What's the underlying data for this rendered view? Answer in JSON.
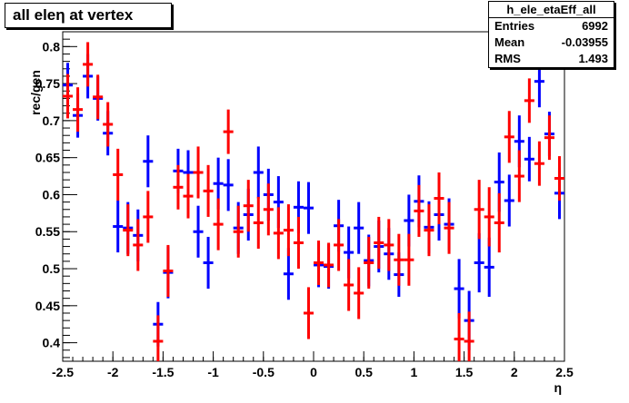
{
  "chart_data": {
    "type": "scatter",
    "title": "all eleη at vertex",
    "xlabel": "η",
    "ylabel": "rec/gen",
    "xlim": [
      -2.5,
      2.5
    ],
    "ylim": [
      0.375,
      0.82
    ],
    "xticks": [
      "-2.5",
      "-2",
      "-1.5",
      "-1",
      "-0.5",
      "0",
      "0.5",
      "1",
      "1.5",
      "2",
      "2.5"
    ],
    "xtick_values": [
      -2.5,
      -2,
      -1.5,
      -1,
      -0.5,
      0,
      0.5,
      1,
      1.5,
      2,
      2.5
    ],
    "yticks": [
      "0.4",
      "0.45",
      "0.5",
      "0.55",
      "0.6",
      "0.65",
      "0.7",
      "0.75",
      "0.8"
    ],
    "ytick_values": [
      0.4,
      0.45,
      0.5,
      0.55,
      0.6,
      0.65,
      0.7,
      0.75,
      0.8
    ],
    "bin_width": 0.1,
    "series": [
      {
        "color": "#0000ff",
        "x": [
          -2.45,
          -2.35,
          -2.25,
          -2.15,
          -2.05,
          -1.95,
          -1.85,
          -1.75,
          -1.65,
          -1.55,
          -1.45,
          -1.35,
          -1.25,
          -1.15,
          -1.05,
          -0.95,
          -0.85,
          -0.75,
          -0.65,
          -0.55,
          -0.45,
          -0.35,
          -0.25,
          -0.15,
          -0.05,
          0.05,
          0.15,
          0.25,
          0.35,
          0.45,
          0.55,
          0.65,
          0.75,
          0.85,
          0.95,
          1.05,
          1.15,
          1.25,
          1.35,
          1.45,
          1.55,
          1.65,
          1.75,
          1.85,
          1.95,
          2.05,
          2.15,
          2.25,
          2.35,
          2.45
        ],
        "y": [
          0.748,
          0.707,
          0.76,
          0.73,
          0.683,
          0.557,
          0.555,
          0.545,
          0.645,
          0.425,
          0.495,
          0.632,
          0.63,
          0.55,
          0.508,
          0.615,
          0.613,
          0.555,
          0.573,
          0.63,
          0.6,
          0.59,
          0.493,
          0.583,
          0.582,
          0.505,
          0.503,
          0.558,
          0.522,
          0.555,
          0.511,
          0.53,
          0.52,
          0.492,
          0.565,
          0.591,
          0.556,
          0.573,
          0.56,
          0.473,
          0.43,
          0.508,
          0.502,
          0.617,
          0.592,
          0.672,
          0.648,
          0.753,
          0.682,
          0.602
        ],
        "err": [
          0.03,
          0.03,
          0.03,
          0.03,
          0.03,
          0.035,
          0.035,
          0.035,
          0.035,
          0.03,
          0.035,
          0.03,
          0.03,
          0.035,
          0.035,
          0.035,
          0.035,
          0.035,
          0.035,
          0.035,
          0.035,
          0.035,
          0.035,
          0.035,
          0.035,
          0.03,
          0.03,
          0.035,
          0.035,
          0.035,
          0.035,
          0.035,
          0.035,
          0.03,
          0.035,
          0.035,
          0.035,
          0.035,
          0.035,
          0.04,
          0.04,
          0.04,
          0.04,
          0.04,
          0.035,
          0.035,
          0.03,
          0.035,
          0.03,
          0.035
        ]
      },
      {
        "color": "#ff0000",
        "x": [
          -2.45,
          -2.35,
          -2.25,
          -2.15,
          -2.05,
          -1.95,
          -1.85,
          -1.75,
          -1.65,
          -1.55,
          -1.45,
          -1.35,
          -1.25,
          -1.15,
          -1.05,
          -0.95,
          -0.85,
          -0.75,
          -0.65,
          -0.55,
          -0.45,
          -0.35,
          -0.25,
          -0.15,
          -0.05,
          0.05,
          0.15,
          0.25,
          0.35,
          0.45,
          0.55,
          0.65,
          0.75,
          0.85,
          0.95,
          1.05,
          1.15,
          1.25,
          1.35,
          1.45,
          1.55,
          1.65,
          1.75,
          1.85,
          1.95,
          2.05,
          2.15,
          2.25,
          2.35,
          2.45
        ],
        "y": [
          0.733,
          0.715,
          0.776,
          0.732,
          0.695,
          0.627,
          0.552,
          0.532,
          0.57,
          0.402,
          0.497,
          0.61,
          0.598,
          0.63,
          0.605,
          0.56,
          0.685,
          0.55,
          0.585,
          0.562,
          0.58,
          0.548,
          0.552,
          0.535,
          0.44,
          0.508,
          0.505,
          0.532,
          0.478,
          0.467,
          0.508,
          0.535,
          0.532,
          0.512,
          0.512,
          0.578,
          0.552,
          0.595,
          0.555,
          0.405,
          0.402,
          0.58,
          0.57,
          0.562,
          0.678,
          0.625,
          0.727,
          0.642,
          0.677,
          0.622
        ],
        "err": [
          0.03,
          0.03,
          0.03,
          0.03,
          0.03,
          0.035,
          0.035,
          0.035,
          0.035,
          0.035,
          0.035,
          0.03,
          0.03,
          0.035,
          0.035,
          0.035,
          0.03,
          0.035,
          0.035,
          0.035,
          0.035,
          0.035,
          0.035,
          0.035,
          0.035,
          0.03,
          0.03,
          0.035,
          0.035,
          0.035,
          0.035,
          0.035,
          0.035,
          0.035,
          0.035,
          0.035,
          0.035,
          0.035,
          0.035,
          0.035,
          0.04,
          0.04,
          0.04,
          0.04,
          0.035,
          0.035,
          0.03,
          0.03,
          0.03,
          0.03
        ]
      }
    ]
  },
  "stats_box": {
    "name": "h_ele_etaEff_all",
    "entries_label": "Entries",
    "entries_value": "6992",
    "mean_label": "Mean",
    "mean_value": "-0.03955",
    "rms_label": "RMS",
    "rms_value": "1.493"
  }
}
